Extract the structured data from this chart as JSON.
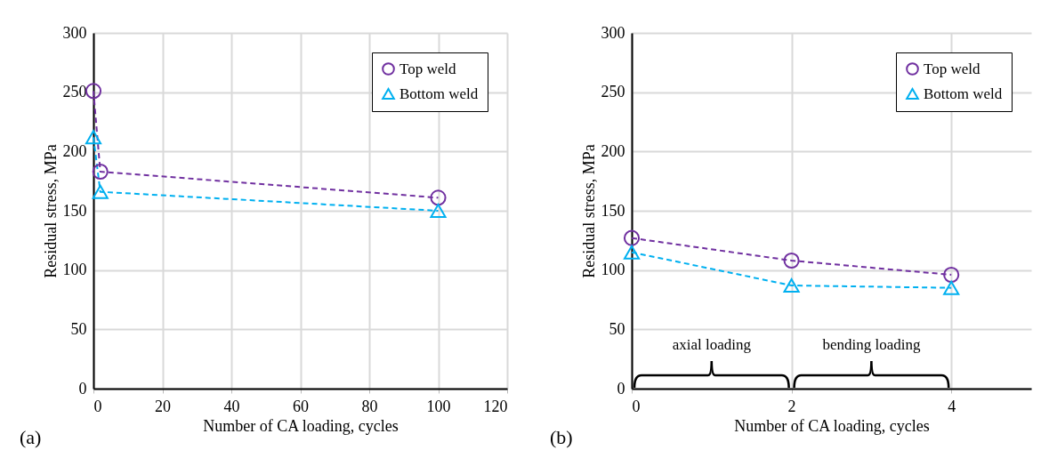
{
  "chart_data": [
    {
      "type": "line",
      "xlabel": "Number of  CA loading, cycles",
      "ylabel": "Residual stress, MPa",
      "x": [
        0,
        2,
        100
      ],
      "series": [
        {
          "name": "Top weld",
          "color": "#7030a0",
          "marker": "circle",
          "values": [
            251,
            183,
            161
          ]
        },
        {
          "name": "Bottom weld",
          "color": "#00b0f0",
          "marker": "triangle",
          "values": [
            212,
            166,
            150
          ]
        }
      ],
      "xlim": [
        0,
        120
      ],
      "xticks": [
        0,
        20,
        40,
        60,
        80,
        100,
        120
      ],
      "ylim": [
        0,
        300
      ],
      "yticks": [
        0,
        50,
        100,
        150,
        200,
        250,
        300
      ],
      "grid": true,
      "legend": "top right",
      "line_style": "dashed",
      "annotations": [
        "(a)"
      ]
    },
    {
      "type": "line",
      "xlabel": "Number of CA loading, cycles",
      "ylabel": "Residual stress, MPa",
      "x": [
        0,
        2,
        4
      ],
      "series": [
        {
          "name": "Top weld",
          "color": "#7030a0",
          "marker": "circle",
          "values": [
            127,
            108,
            96
          ]
        },
        {
          "name": "Bottom weld",
          "color": "#00b0f0",
          "marker": "triangle",
          "values": [
            115,
            87,
            85
          ]
        }
      ],
      "xlim": [
        0,
        5
      ],
      "xticks": [
        0,
        2,
        4
      ],
      "ylim": [
        0,
        300
      ],
      "yticks": [
        0,
        50,
        100,
        150,
        200,
        250,
        300
      ],
      "grid": true,
      "legend": "top right",
      "line_style": "dashed",
      "annotations": [
        "(b)",
        "axial loading",
        "bending loading"
      ]
    }
  ]
}
